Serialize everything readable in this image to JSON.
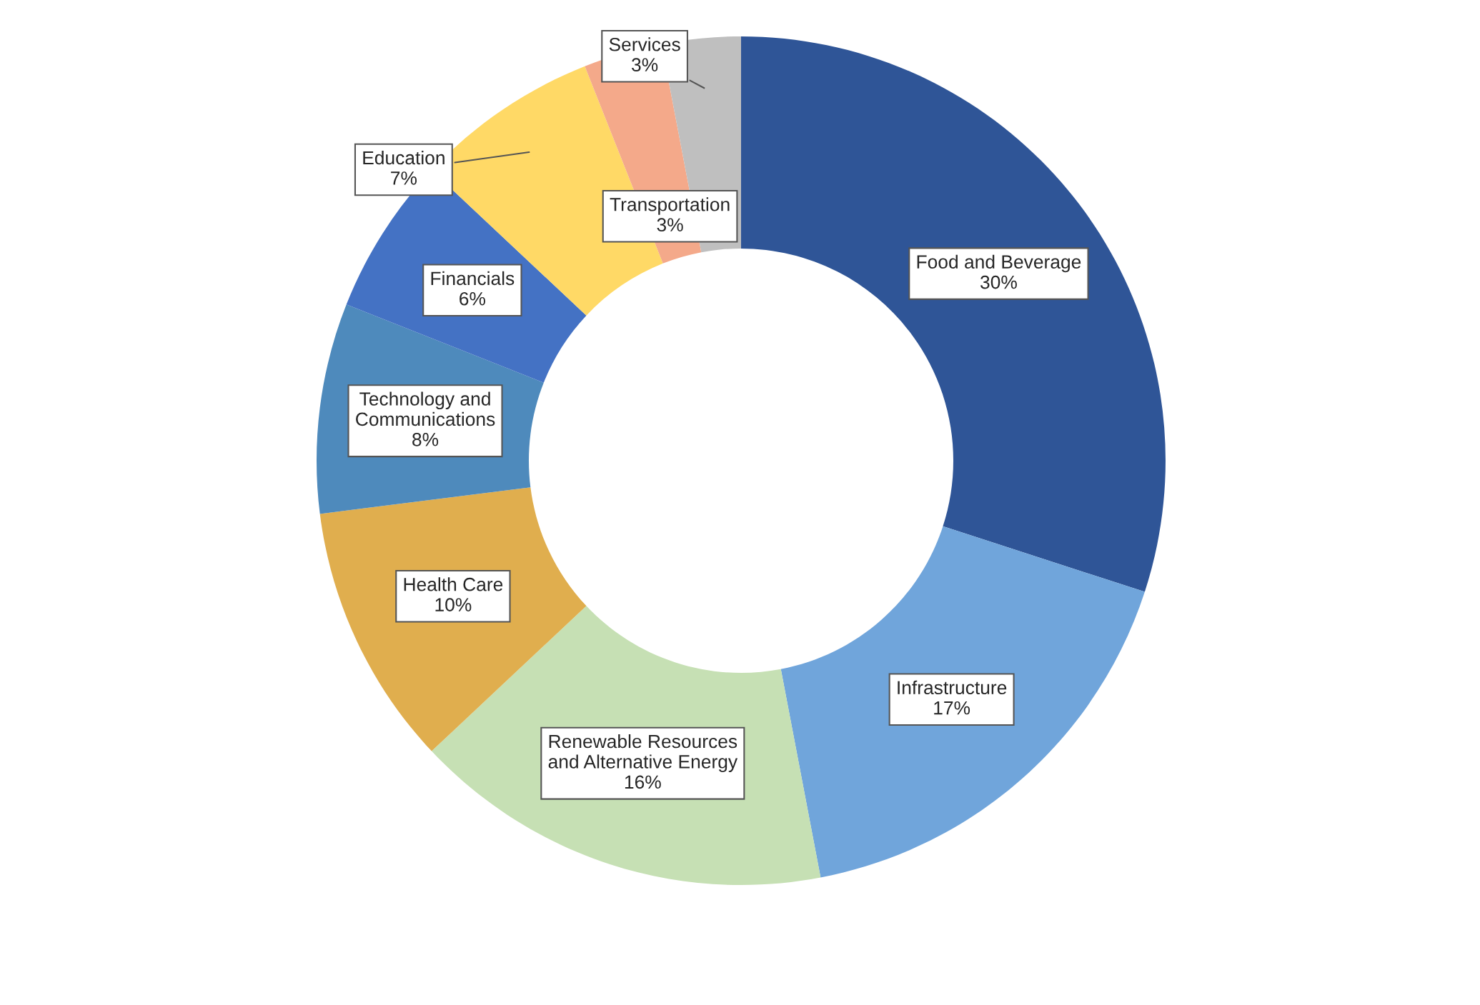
{
  "chart_data": {
    "type": "donut",
    "categories": [
      "Food and Beverage",
      "Infrastructure",
      "Renewable Resources\nand Alternative Energy",
      "Health Care",
      "Technology and\nCommunications",
      "Financials",
      "Education",
      "Transportation",
      "Services"
    ],
    "values": [
      30,
      17,
      16,
      10,
      8,
      6,
      7,
      3,
      3
    ],
    "colors": [
      "#2f5597",
      "#70a5db",
      "#c6e0b4",
      "#e0ae4e",
      "#4e8abc",
      "#4472c4",
      "#ffd966",
      "#f4a98a",
      "#bfbfbf"
    ],
    "value_labels": [
      "30%",
      "17%",
      "16%",
      "10%",
      "8%",
      "6%",
      "7%",
      "3%",
      "3%"
    ]
  }
}
